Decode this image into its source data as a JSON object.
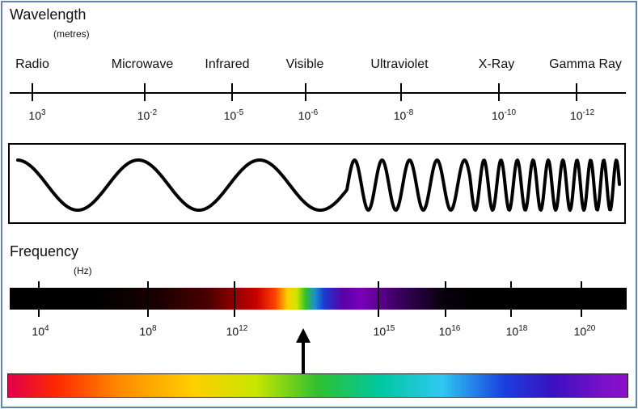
{
  "wavelength": {
    "title": "Wavelength",
    "unit": "(metres)",
    "bands": [
      "Radio",
      "Microwave",
      "Infrared",
      "Visible",
      "Ultraviolet",
      "X-Ray",
      "Gamma Ray"
    ],
    "ticks": [
      {
        "base": "10",
        "exp": "3"
      },
      {
        "base": "10",
        "exp": "-2"
      },
      {
        "base": "10",
        "exp": "-5"
      },
      {
        "base": "10",
        "exp": "-6"
      },
      {
        "base": "10",
        "exp": "-8"
      },
      {
        "base": "10",
        "exp": "-10"
      },
      {
        "base": "10",
        "exp": "-12"
      }
    ]
  },
  "frequency": {
    "title": "Frequency",
    "unit": "(Hz)",
    "ticks": [
      {
        "base": "10",
        "exp": "4"
      },
      {
        "base": "10",
        "exp": "8"
      },
      {
        "base": "10",
        "exp": "12"
      },
      {
        "base": "10",
        "exp": "15"
      },
      {
        "base": "10",
        "exp": "16"
      },
      {
        "base": "10",
        "exp": "18"
      },
      {
        "base": "10",
        "exp": "20"
      }
    ]
  },
  "colors": {
    "frame_border": "#5b84b8",
    "ink": "#000000"
  }
}
